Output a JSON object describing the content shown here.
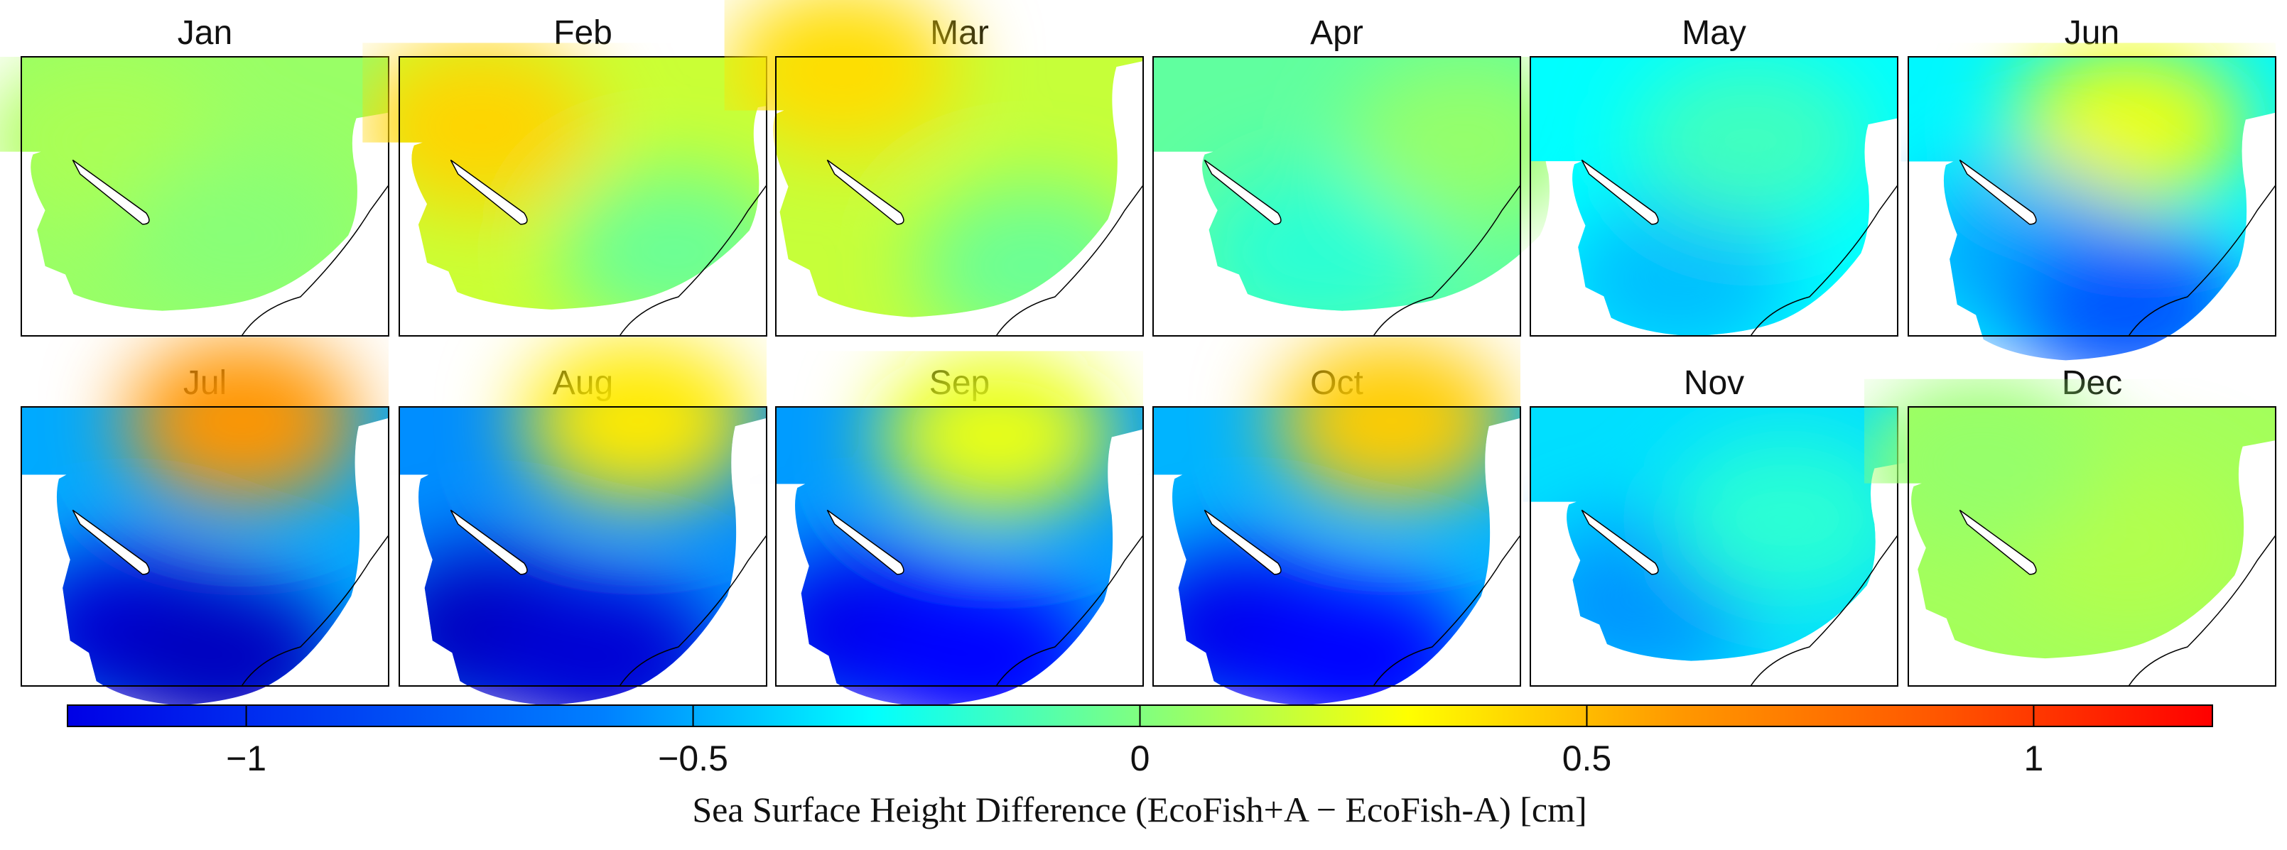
{
  "chart_data": {
    "type": "heatmap",
    "description_variable": "sea surface height difference",
    "panels": [
      {
        "title": "Jan",
        "spots": [
          {
            "x": 0.22,
            "y": 0.3,
            "v": 0.1
          },
          {
            "x": 0.6,
            "y": 0.65,
            "v": 0.02
          }
        ]
      },
      {
        "title": "Feb",
        "spots": [
          {
            "x": 0.22,
            "y": 0.25,
            "v": 0.4
          },
          {
            "x": 0.75,
            "y": 0.7,
            "v": -0.05
          }
        ]
      },
      {
        "title": "Mar",
        "spots": [
          {
            "x": 0.18,
            "y": 0.05,
            "v": 0.38
          },
          {
            "x": 0.7,
            "y": 0.75,
            "v": -0.05
          }
        ]
      },
      {
        "title": "Apr",
        "spots": [
          {
            "x": 0.45,
            "y": 0.7,
            "v": -0.2
          },
          {
            "x": 0.85,
            "y": 0.3,
            "v": 0.05
          }
        ]
      },
      {
        "title": "May",
        "spots": [
          {
            "x": 0.4,
            "y": 0.8,
            "v": -0.45
          },
          {
            "x": 0.6,
            "y": 0.3,
            "v": -0.15
          }
        ]
      },
      {
        "title": "Jun",
        "spots": [
          {
            "x": 0.6,
            "y": 0.25,
            "v": 0.25
          },
          {
            "x": 0.3,
            "y": 0.7,
            "v": -0.5
          },
          {
            "x": 0.6,
            "y": 0.9,
            "v": -0.7
          }
        ]
      },
      {
        "title": "Jul",
        "spots": [
          {
            "x": 0.6,
            "y": 0.05,
            "v": 0.55
          },
          {
            "x": 0.3,
            "y": 0.8,
            "v": -1.0
          },
          {
            "x": 0.55,
            "y": 0.9,
            "v": -1.05
          }
        ]
      },
      {
        "title": "Aug",
        "spots": [
          {
            "x": 0.65,
            "y": 0.05,
            "v": 0.35
          },
          {
            "x": 0.25,
            "y": 0.8,
            "v": -1.05
          },
          {
            "x": 0.55,
            "y": 0.9,
            "v": -1.0
          }
        ]
      },
      {
        "title": "Sep",
        "spots": [
          {
            "x": 0.6,
            "y": 0.1,
            "v": 0.25
          },
          {
            "x": 0.25,
            "y": 0.8,
            "v": -0.95
          },
          {
            "x": 0.55,
            "y": 0.9,
            "v": -0.9
          }
        ]
      },
      {
        "title": "Oct",
        "spots": [
          {
            "x": 0.65,
            "y": 0.05,
            "v": 0.42
          },
          {
            "x": 0.25,
            "y": 0.8,
            "v": -0.95
          },
          {
            "x": 0.55,
            "y": 0.9,
            "v": -0.9
          }
        ]
      },
      {
        "title": "Nov",
        "spots": [
          {
            "x": 0.3,
            "y": 0.7,
            "v": -0.55
          },
          {
            "x": 0.7,
            "y": 0.4,
            "v": -0.2
          }
        ]
      },
      {
        "title": "Dec",
        "spots": [
          {
            "x": 0.6,
            "y": 0.5,
            "v": 0.12
          },
          {
            "x": 0.2,
            "y": 0.2,
            "v": 0.05
          }
        ]
      }
    ],
    "colorbar": {
      "range": [
        -1.2,
        1.2
      ],
      "ticks": [
        -1,
        -0.5,
        0,
        0.5,
        1
      ],
      "tick_labels": [
        "−1",
        "−0.5",
        "0",
        "0.5",
        "1"
      ],
      "label": "Sea Surface Height Difference (EcoFish+A − EcoFish-A) [cm]",
      "colormap": "jet"
    }
  }
}
